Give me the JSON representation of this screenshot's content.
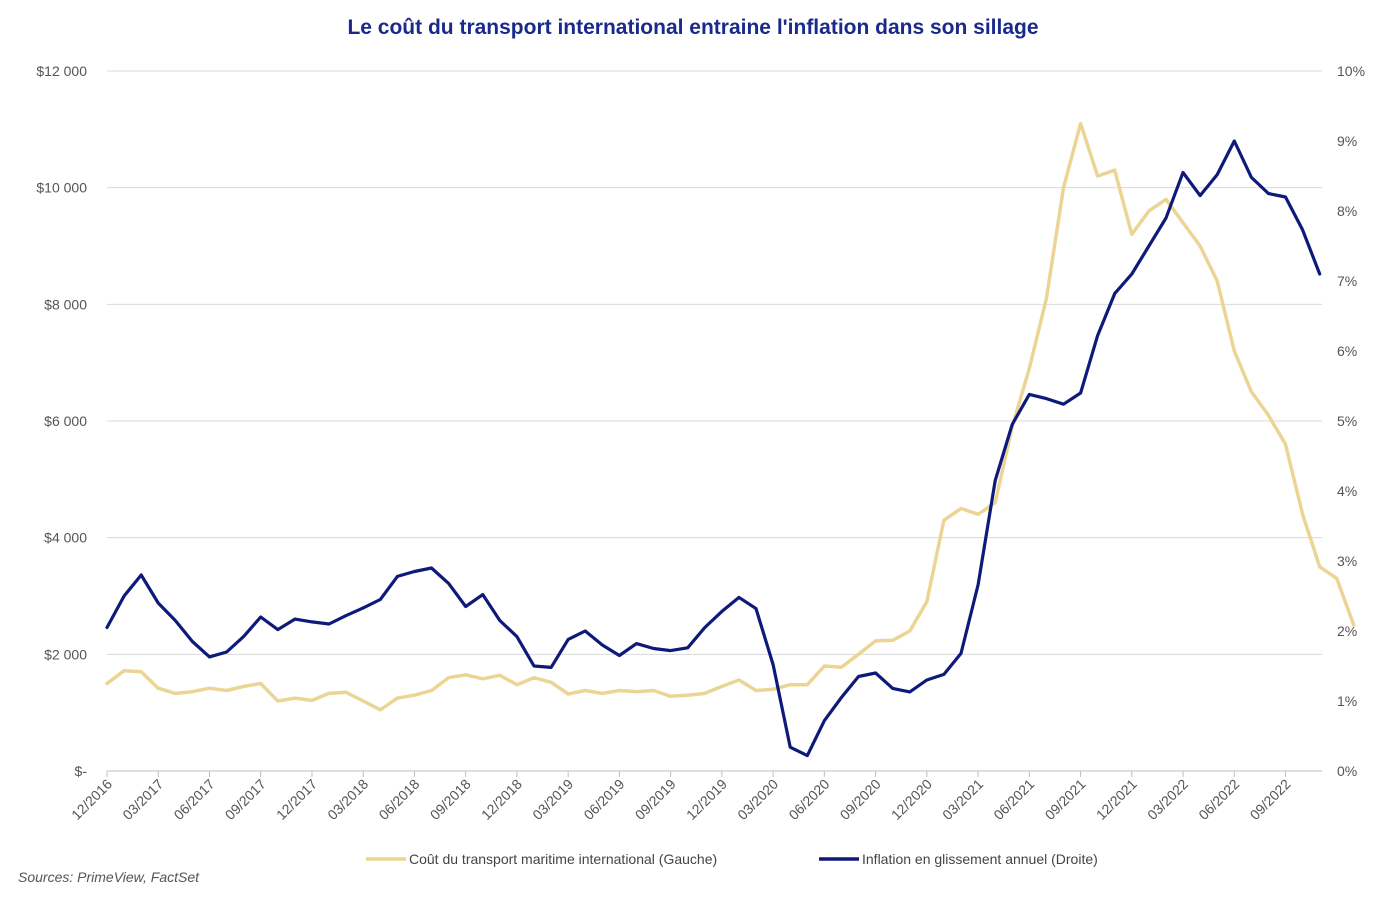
{
  "chart_data": {
    "type": "line",
    "title": "Le coût du transport international entraine l'inflation dans son sillage",
    "source": "Sources: PrimeView, FactSet",
    "x_axis": {
      "tick_labels": [
        "12/2016",
        "03/2017",
        "06/2017",
        "09/2017",
        "12/2017",
        "03/2018",
        "06/2018",
        "09/2018",
        "12/2018",
        "03/2019",
        "06/2019",
        "09/2019",
        "12/2019",
        "03/2020",
        "06/2020",
        "09/2020",
        "12/2020",
        "03/2021",
        "06/2021",
        "09/2021",
        "12/2021",
        "03/2022",
        "06/2022",
        "09/2022"
      ],
      "range": [
        "2016-12",
        "2022-11"
      ]
    },
    "y_left": {
      "tick_labels": [
        "$-",
        "$2 000",
        "$4 000",
        "$6 000",
        "$8 000",
        "$10 000",
        "$12 000"
      ],
      "ylim": [
        0,
        12000
      ]
    },
    "y_right": {
      "tick_labels": [
        "0%",
        "1%",
        "2%",
        "3%",
        "4%",
        "5%",
        "6%",
        "7%",
        "8%",
        "9%",
        "10%"
      ],
      "ylim": [
        0,
        10
      ]
    },
    "grid": "horizontal",
    "legend_position": "bottom",
    "series": [
      {
        "name": "Coût du transport maritime international (Gauche)",
        "axis": "left",
        "color": "#ecd594",
        "points": [
          [
            "2016-12",
            1500
          ],
          [
            "2017-01",
            1720
          ],
          [
            "2017-02",
            1700
          ],
          [
            "2017-03",
            1420
          ],
          [
            "2017-04",
            1330
          ],
          [
            "2017-05",
            1360
          ],
          [
            "2017-06",
            1420
          ],
          [
            "2017-07",
            1380
          ],
          [
            "2017-08",
            1450
          ],
          [
            "2017-09",
            1500
          ],
          [
            "2017-10",
            1200
          ],
          [
            "2017-11",
            1250
          ],
          [
            "2017-12",
            1210
          ],
          [
            "2018-01",
            1330
          ],
          [
            "2018-02",
            1350
          ],
          [
            "2018-03",
            1200
          ],
          [
            "2018-04",
            1050
          ],
          [
            "2018-05",
            1250
          ],
          [
            "2018-06",
            1300
          ],
          [
            "2018-07",
            1380
          ],
          [
            "2018-08",
            1600
          ],
          [
            "2018-09",
            1650
          ],
          [
            "2018-10",
            1580
          ],
          [
            "2018-11",
            1640
          ],
          [
            "2018-12",
            1480
          ],
          [
            "2019-01",
            1600
          ],
          [
            "2019-02",
            1520
          ],
          [
            "2019-03",
            1320
          ],
          [
            "2019-04",
            1380
          ],
          [
            "2019-05",
            1330
          ],
          [
            "2019-06",
            1380
          ],
          [
            "2019-07",
            1360
          ],
          [
            "2019-08",
            1380
          ],
          [
            "2019-09",
            1280
          ],
          [
            "2019-10",
            1300
          ],
          [
            "2019-11",
            1330
          ],
          [
            "2019-12",
            1450
          ],
          [
            "2020-01",
            1560
          ],
          [
            "2020-02",
            1380
          ],
          [
            "2020-03",
            1400
          ],
          [
            "2020-04",
            1480
          ],
          [
            "2020-05",
            1480
          ],
          [
            "2020-06",
            1800
          ],
          [
            "2020-07",
            1780
          ],
          [
            "2020-08",
            2000
          ],
          [
            "2020-09",
            2230
          ],
          [
            "2020-10",
            2240
          ],
          [
            "2020-11",
            2400
          ],
          [
            "2020-12",
            2900
          ],
          [
            "2021-01",
            4300
          ],
          [
            "2021-02",
            4500
          ],
          [
            "2021-03",
            4400
          ],
          [
            "2021-04",
            4600
          ],
          [
            "2021-05",
            5900
          ],
          [
            "2021-06",
            6900
          ],
          [
            "2021-07",
            8100
          ],
          [
            "2021-08",
            10000
          ],
          [
            "2021-09",
            11100
          ],
          [
            "2021-10",
            10200
          ],
          [
            "2021-11",
            10300
          ],
          [
            "2021-12",
            9200
          ],
          [
            "2022-01",
            9600
          ],
          [
            "2022-02",
            9800
          ],
          [
            "2022-03",
            9400
          ],
          [
            "2022-04",
            9000
          ],
          [
            "2022-05",
            8400
          ],
          [
            "2022-06",
            7200
          ],
          [
            "2022-07",
            6500
          ],
          [
            "2022-08",
            6100
          ],
          [
            "2022-09",
            5600
          ],
          [
            "2022-10",
            4400
          ],
          [
            "2022-11",
            3500
          ],
          [
            "2022-12",
            3300
          ],
          [
            "2023-01",
            2500
          ]
        ]
      },
      {
        "name": "Inflation en glissement annuel (Droite)",
        "axis": "right",
        "color": "#0d1a7a",
        "points": [
          [
            "2016-12",
            2.05
          ],
          [
            "2017-01",
            2.5
          ],
          [
            "2017-02",
            2.8
          ],
          [
            "2017-03",
            2.4
          ],
          [
            "2017-04",
            2.15
          ],
          [
            "2017-05",
            1.85
          ],
          [
            "2017-06",
            1.63
          ],
          [
            "2017-07",
            1.7
          ],
          [
            "2017-08",
            1.92
          ],
          [
            "2017-09",
            2.2
          ],
          [
            "2017-10",
            2.02
          ],
          [
            "2017-11",
            2.17
          ],
          [
            "2017-12",
            2.13
          ],
          [
            "2018-01",
            2.1
          ],
          [
            "2018-02",
            2.22
          ],
          [
            "2018-03",
            2.33
          ],
          [
            "2018-04",
            2.45
          ],
          [
            "2018-05",
            2.78
          ],
          [
            "2018-06",
            2.85
          ],
          [
            "2018-07",
            2.9
          ],
          [
            "2018-08",
            2.68
          ],
          [
            "2018-09",
            2.35
          ],
          [
            "2018-10",
            2.52
          ],
          [
            "2018-11",
            2.15
          ],
          [
            "2018-12",
            1.92
          ],
          [
            "2019-01",
            1.5
          ],
          [
            "2019-02",
            1.48
          ],
          [
            "2019-03",
            1.88
          ],
          [
            "2019-04",
            2.0
          ],
          [
            "2019-05",
            1.8
          ],
          [
            "2019-06",
            1.65
          ],
          [
            "2019-07",
            1.82
          ],
          [
            "2019-08",
            1.75
          ],
          [
            "2019-09",
            1.72
          ],
          [
            "2019-10",
            1.76
          ],
          [
            "2019-11",
            2.05
          ],
          [
            "2019-12",
            2.28
          ],
          [
            "2020-01",
            2.48
          ],
          [
            "2020-02",
            2.32
          ],
          [
            "2020-03",
            1.52
          ],
          [
            "2020-04",
            0.34
          ],
          [
            "2020-05",
            0.22
          ],
          [
            "2020-06",
            0.72
          ],
          [
            "2020-07",
            1.05
          ],
          [
            "2020-08",
            1.35
          ],
          [
            "2020-09",
            1.4
          ],
          [
            "2020-10",
            1.18
          ],
          [
            "2020-11",
            1.13
          ],
          [
            "2020-12",
            1.3
          ],
          [
            "2021-01",
            1.38
          ],
          [
            "2021-02",
            1.68
          ],
          [
            "2021-03",
            2.66
          ],
          [
            "2021-04",
            4.15
          ],
          [
            "2021-05",
            4.95
          ],
          [
            "2021-06",
            5.38
          ],
          [
            "2021-07",
            5.32
          ],
          [
            "2021-08",
            5.24
          ],
          [
            "2021-09",
            5.4
          ],
          [
            "2021-10",
            6.22
          ],
          [
            "2021-11",
            6.82
          ],
          [
            "2021-12",
            7.1
          ],
          [
            "2022-01",
            7.5
          ],
          [
            "2022-02",
            7.9
          ],
          [
            "2022-03",
            8.55
          ],
          [
            "2022-04",
            8.22
          ],
          [
            "2022-05",
            8.52
          ],
          [
            "2022-06",
            9.0
          ],
          [
            "2022-07",
            8.48
          ],
          [
            "2022-08",
            8.25
          ],
          [
            "2022-09",
            8.2
          ],
          [
            "2022-10",
            7.73
          ],
          [
            "2022-11",
            7.1
          ]
        ]
      }
    ]
  }
}
